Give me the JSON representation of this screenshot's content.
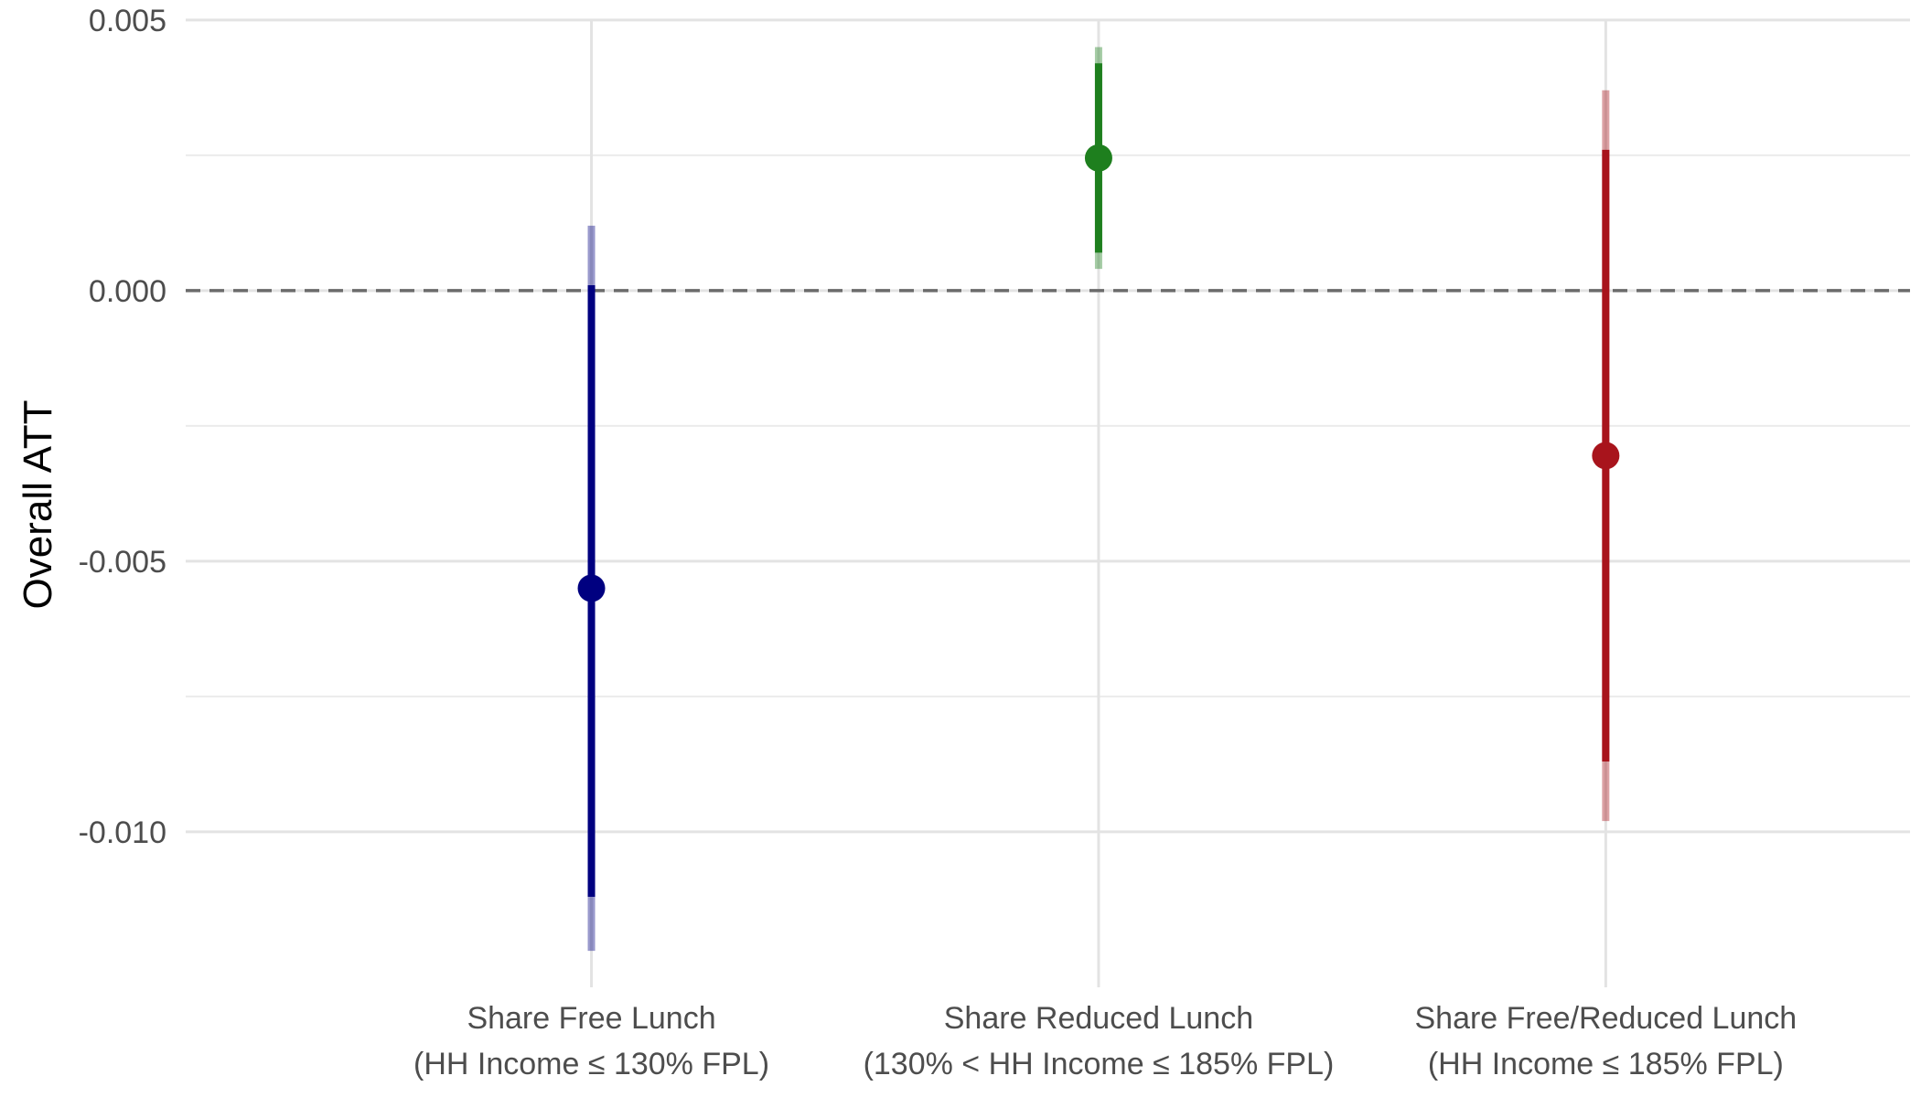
{
  "chart_data": {
    "type": "scatter",
    "title": "",
    "xlabel": "",
    "ylabel": "Overall ATT",
    "ylim": [
      -0.0124,
      0.0052
    ],
    "yticks": [
      0.005,
      0.0,
      -0.005,
      -0.01
    ],
    "ytick_labels": [
      "0.005",
      "0.000",
      "-0.005",
      "-0.010"
    ],
    "grid": true,
    "reference_line": {
      "y": 0,
      "style": "dashed",
      "color": "#6b6b6b"
    },
    "categories": [
      {
        "line1": "Share Free Lunch",
        "line2": "(HH Income ≤ 130% FPL)"
      },
      {
        "line1": "Share Reduced Lunch",
        "line2": "(130% < HH Income ≤ 185% FPL)"
      },
      {
        "line1": "Share Free/Reduced Lunch",
        "line2": "(HH Income ≤ 185% FPL)"
      }
    ],
    "points": [
      {
        "estimate": -0.0055,
        "ci_inner": [
          -0.0112,
          0.0001
        ],
        "ci_outer": [
          -0.0122,
          0.0012
        ],
        "color": "#000080"
      },
      {
        "estimate": 0.00245,
        "ci_inner": [
          0.0007,
          0.0042
        ],
        "ci_outer": [
          0.0004,
          0.0045
        ],
        "color": "#1e7f1e"
      },
      {
        "estimate": -0.00305,
        "ci_inner": [
          -0.0087,
          0.0026
        ],
        "ci_outer": [
          -0.0098,
          0.0037
        ],
        "color": "#a8141c"
      }
    ]
  }
}
